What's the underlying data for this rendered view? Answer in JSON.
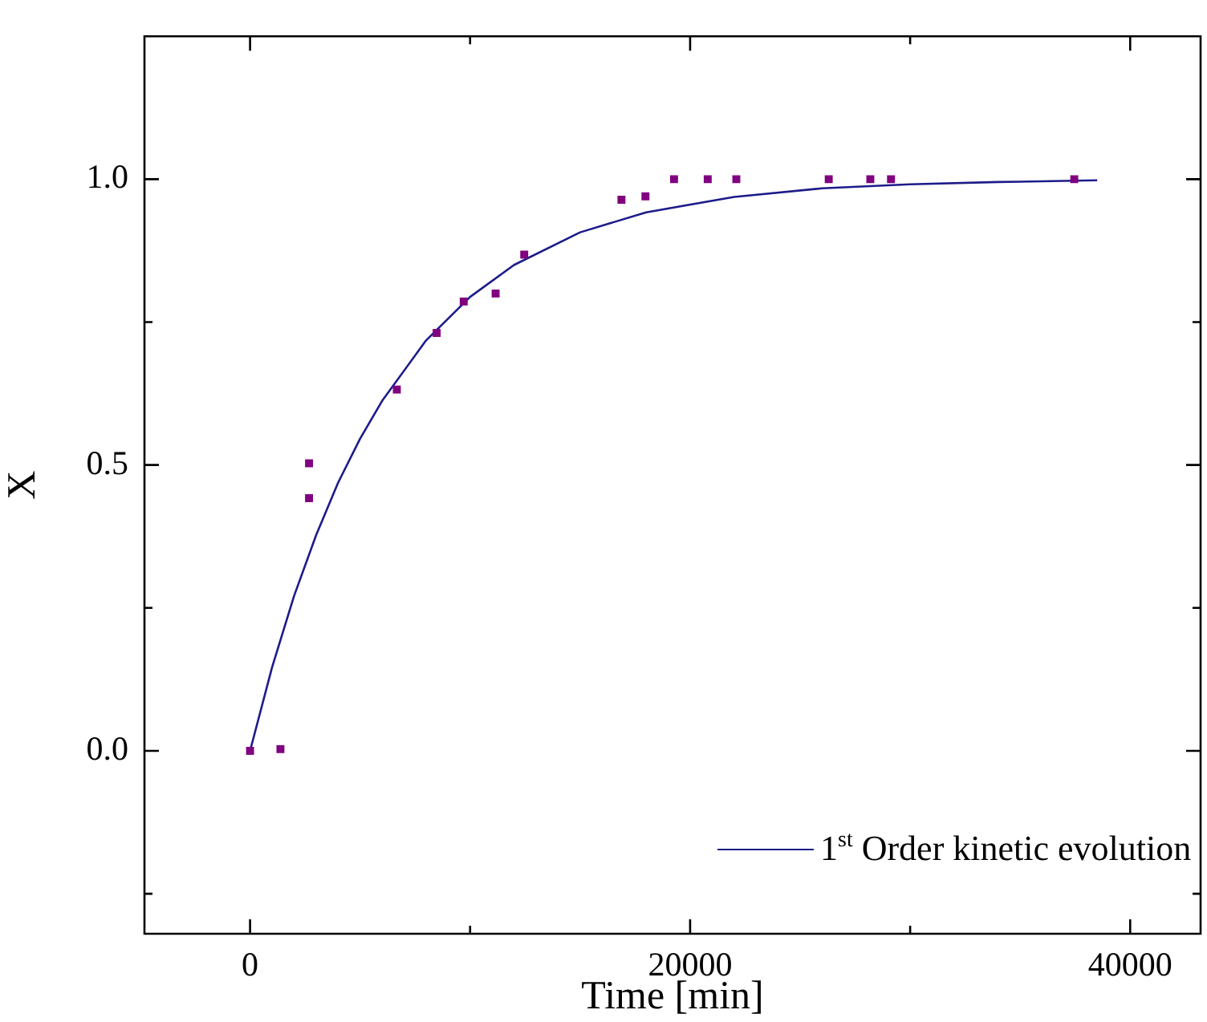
{
  "chart_data": {
    "type": "scatter",
    "xlabel": "Time [min]",
    "ylabel": "X",
    "xlim": [
      -4800,
      43200
    ],
    "ylim": [
      -0.32,
      1.25
    ],
    "xticks": [
      0,
      {
        "value": 10000,
        "label": null
      },
      20000,
      {
        "value": 30000,
        "label": null
      },
      40000
    ],
    "yticks": [
      {
        "value": -0.25,
        "label": null
      },
      {
        "value": 0,
        "label": "0.0"
      },
      {
        "value": 0.25,
        "label": null
      },
      {
        "value": 0.5,
        "label": "0.5"
      },
      {
        "value": 0.75,
        "label": null
      },
      {
        "value": 1,
        "label": "1.0"
      }
    ],
    "grid": false,
    "legend": "bottom right",
    "marker": "square",
    "series": [
      {
        "color": "#800080",
        "x": [
          0,
          1380,
          2680,
          2680,
          6670,
          8480,
          9710,
          11160,
          12460,
          16880,
          17970,
          19270,
          20800,
          22100,
          26300,
          28190,
          29130,
          37460
        ],
        "values": [
          0,
          0.003,
          0.503,
          0.442,
          0.632,
          0.731,
          0.786,
          0.8,
          0.868,
          0.964,
          0.97,
          1.0,
          1.0,
          1.0,
          1.0,
          1.0,
          1.0,
          1.0
        ]
      },
      {
        "type": "line",
        "name": "1$^{st}$ Order kinetic evolution",
        "color": "#1c1c8a",
        "marker": "none",
        "line_style": "solid",
        "x": [
          0,
          1000,
          2000,
          3000,
          4000,
          5000,
          6000,
          8000,
          10000,
          12000,
          15000,
          18000,
          22000,
          26000,
          30000,
          34000,
          38500
        ],
        "values": [
          0,
          0.146,
          0.271,
          0.377,
          0.469,
          0.546,
          0.612,
          0.718,
          0.794,
          0.85,
          0.907,
          0.942,
          0.969,
          0.984,
          0.991,
          0.995,
          0.998
        ]
      }
    ]
  }
}
